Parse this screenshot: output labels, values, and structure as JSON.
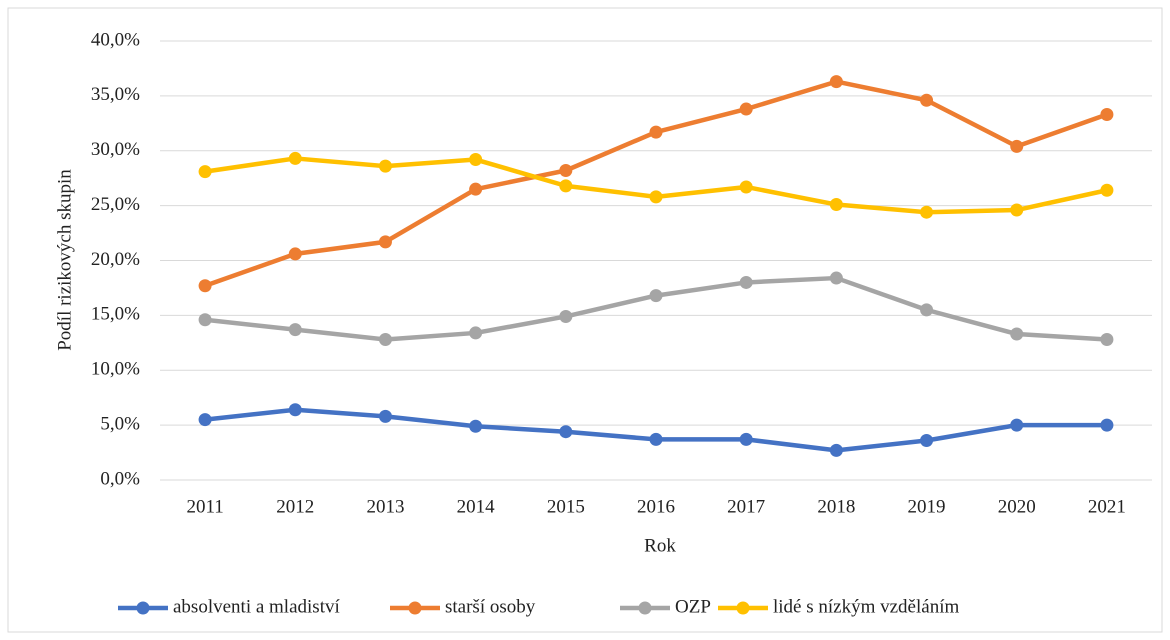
{
  "chart_data": {
    "type": "line",
    "y_label": "Podíl rizikových skupin",
    "x_label": "Rok",
    "categories": [
      "2011",
      "2012",
      "2013",
      "2014",
      "2015",
      "2016",
      "2017",
      "2018",
      "2019",
      "2020",
      "2021"
    ],
    "series": [
      {
        "name": "absolventi a mladiství",
        "color": "#4472c4",
        "values": [
          5.5,
          6.4,
          5.8,
          4.9,
          4.4,
          3.7,
          3.7,
          2.7,
          3.6,
          5.0,
          5.0
        ]
      },
      {
        "name": "starší osoby",
        "color": "#ed7d31",
        "values": [
          17.7,
          20.6,
          21.7,
          26.5,
          28.2,
          31.7,
          33.8,
          36.3,
          34.6,
          30.4,
          33.3
        ]
      },
      {
        "name": "OZP",
        "color": "#a5a5a5",
        "values": [
          14.6,
          13.7,
          12.8,
          13.4,
          14.9,
          16.8,
          18.0,
          18.4,
          15.5,
          13.3,
          12.8
        ]
      },
      {
        "name": "lidé s nízkým vzděláním",
        "color": "#ffc000",
        "values": [
          28.1,
          29.3,
          28.6,
          29.2,
          26.8,
          25.8,
          26.7,
          25.1,
          24.4,
          24.6,
          26.4
        ]
      }
    ],
    "ylim": [
      0,
      40
    ],
    "yticks": [
      {
        "value": 0,
        "label": "0,0%"
      },
      {
        "value": 5,
        "label": "5,0%"
      },
      {
        "value": 10,
        "label": "10,0%"
      },
      {
        "value": 15,
        "label": "15,0%"
      },
      {
        "value": 20,
        "label": "20,0%"
      },
      {
        "value": 25,
        "label": "25,0%"
      },
      {
        "value": 30,
        "label": "30,0%"
      },
      {
        "value": 35,
        "label": "35,0%"
      },
      {
        "value": 40,
        "label": "40,0%"
      }
    ],
    "grid": true,
    "legend": "bottom"
  }
}
